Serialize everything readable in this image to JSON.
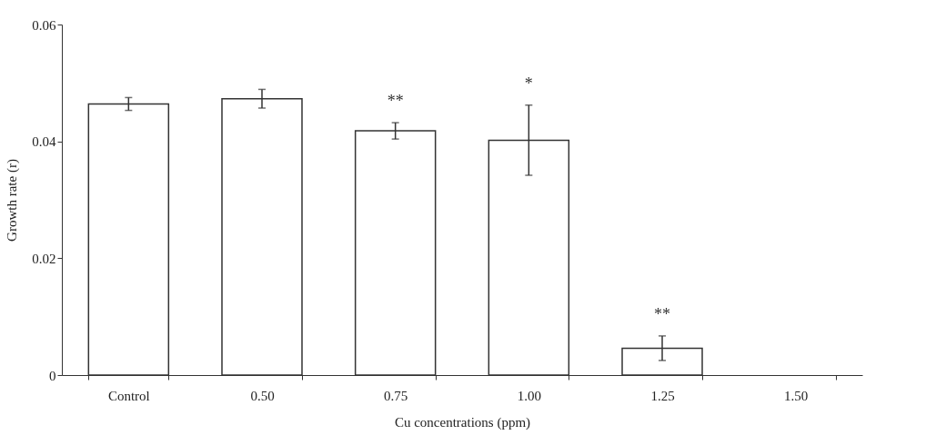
{
  "chart_data": {
    "type": "bar",
    "xlabel": "Cu concentrations (ppm)",
    "ylabel": "Growth rate (r)",
    "categories": [
      "Control",
      "0.50",
      "0.75",
      "1.00",
      "1.25",
      "1.50"
    ],
    "values": [
      0.0464,
      0.0473,
      0.0418,
      0.0402,
      0.0046,
      null
    ],
    "errors": [
      0.0011,
      0.0016,
      0.0014,
      0.006,
      0.0021,
      null
    ],
    "color": "#ffffff",
    "ylim": [
      0,
      0.06
    ],
    "yticks": [
      {
        "value": 0,
        "label": "0"
      },
      {
        "value": 0.02,
        "label": "0.02"
      },
      {
        "value": 0.04,
        "label": "0.04"
      },
      {
        "value": 0.06,
        "label": "0.06"
      }
    ],
    "grid": false,
    "value_labels": [
      null,
      null,
      "**",
      "*",
      "**",
      null
    ]
  }
}
